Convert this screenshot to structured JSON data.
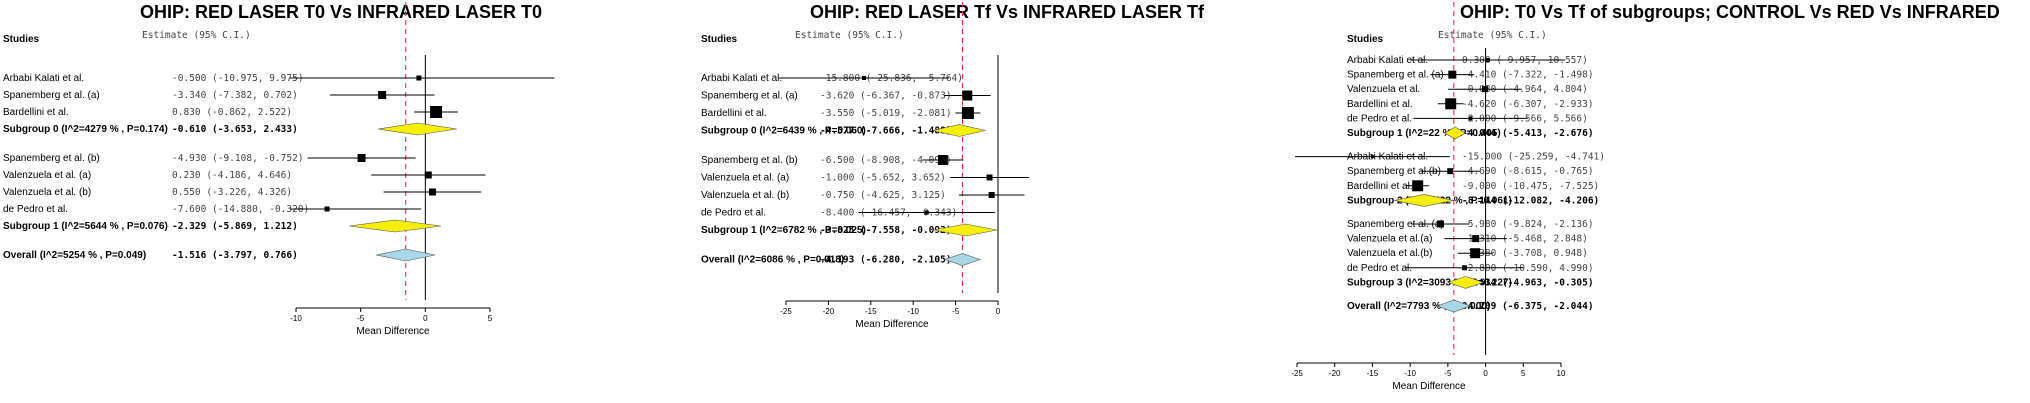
{
  "header": {
    "studies_label": "Studies",
    "estimate_label": "Estimate (95% C.I.)"
  },
  "colors": {
    "summary_subgroup": "#f5ee08",
    "summary_overall": "#a8d8e8",
    "reference_line": "#e8212b",
    "marker": "#000000"
  },
  "chart_data": [
    {
      "type": "forest",
      "title": "OHIP: RED LASER T0 Vs INFRARED LASER T0",
      "xlabel": "Mean Difference",
      "xlim": [
        -10,
        5
      ],
      "xticks": [
        -10,
        -5,
        0,
        5
      ],
      "grid": false,
      "rows": [
        {
          "label": "Arbabi Kalati et al.",
          "est": -0.5,
          "lo": -10.975,
          "hi": 9.975,
          "text": "-0.500 (-10.975, 9.975)",
          "kind": "study",
          "w": 5
        },
        {
          "label": "Spanemberg et al. (a)",
          "est": -3.34,
          "lo": -7.382,
          "hi": 0.702,
          "text": "-3.340 (-7.382, 0.702)",
          "kind": "study",
          "w": 8
        },
        {
          "label": "Bardellini et al.",
          "est": 0.83,
          "lo": -0.862,
          "hi": 2.522,
          "text": "0.830 (-0.862, 2.522)",
          "kind": "study",
          "w": 12
        },
        {
          "label": "Subgroup 0 (I^2=4279 % , P=0.174)",
          "est": -0.61,
          "lo": -3.653,
          "hi": 2.433,
          "text": "-0.610 (-3.653, 2.433)",
          "kind": "subgroup"
        },
        {
          "kind": "gap"
        },
        {
          "label": "Spanemberg et al. (b)",
          "est": -4.93,
          "lo": -9.108,
          "hi": -0.752,
          "text": "-4.930 (-9.108, -0.752)",
          "kind": "study",
          "w": 8
        },
        {
          "label": "Valenzuela et al. (a)",
          "est": 0.23,
          "lo": -4.186,
          "hi": 4.646,
          "text": "0.230 (-4.186, 4.646)",
          "kind": "study",
          "w": 7
        },
        {
          "label": "Valenzuela et al. (b)",
          "est": 0.55,
          "lo": -3.226,
          "hi": 4.326,
          "text": "0.550 (-3.226, 4.326)",
          "kind": "study",
          "w": 7
        },
        {
          "label": "de Pedro et al.",
          "est": -7.6,
          "lo": -14.88,
          "hi": -0.32,
          "text": "-7.600 (-14.880, -0.320)",
          "kind": "study",
          "w": 5
        },
        {
          "label": "Subgroup 1 (I^2=5644 % , P=0.076)",
          "est": -2.329,
          "lo": -5.869,
          "hi": 1.212,
          "text": "-2.329 (-5.869, 1.212)",
          "kind": "subgroup"
        },
        {
          "kind": "gap"
        },
        {
          "label": "Overall (I^2=5254 % , P=0.049)",
          "est": -1.516,
          "lo": -3.797,
          "hi": 0.766,
          "text": "-1.516 (-3.797, 0.766)",
          "kind": "overall"
        }
      ],
      "reference_line": -1.516
    },
    {
      "type": "forest",
      "title": "OHIP: RED LASER Tf Vs INFRARED LASER Tf",
      "xlabel": "Mean Difference",
      "xlim": [
        -25,
        0
      ],
      "xticks": [
        -25,
        -20,
        -15,
        -10,
        -5,
        0
      ],
      "grid": false,
      "rows": [
        {
          "label": "Arbabi Kalati et al.",
          "est": -15.8,
          "lo": -25.836,
          "hi": -5.764,
          "text": "-15.800 (-25.836, -5.764)",
          "kind": "study",
          "w": 4
        },
        {
          "label": "Spanemberg et al. (a)",
          "est": -3.62,
          "lo": -6.367,
          "hi": -0.873,
          "text": "-3.620 (-6.367, -0.873)",
          "kind": "study",
          "w": 10
        },
        {
          "label": "Bardellini et al.",
          "est": -3.55,
          "lo": -5.019,
          "hi": -2.081,
          "text": "-3.550 (-5.019, -2.081)",
          "kind": "study",
          "w": 12
        },
        {
          "label": "Subgroup 0 (I^2=6439 % , P=0.060)",
          "est": -4.577,
          "lo": -7.666,
          "hi": -1.488,
          "text": "-4.577 (-7.666, -1.488)",
          "kind": "subgroup"
        },
        {
          "kind": "gap"
        },
        {
          "label": "Spanemberg et al. (b)",
          "est": -6.5,
          "lo": -8.908,
          "hi": -4.092,
          "text": "-6.500 (-8.908, -4.092)",
          "kind": "study",
          "w": 10
        },
        {
          "label": "Valenzuela et al. (a)",
          "est": -1.0,
          "lo": -5.652,
          "hi": 3.652,
          "text": "-1.000 (-5.652, 3.652)",
          "kind": "study",
          "w": 6
        },
        {
          "label": "Valenzuela et al. (b)",
          "est": -0.75,
          "lo": -4.625,
          "hi": 3.125,
          "text": "-0.750 (-4.625, 3.125)",
          "kind": "study",
          "w": 6
        },
        {
          "label": "de Pedro et al.",
          "est": -8.4,
          "lo": -16.457,
          "hi": -0.343,
          "text": "-8.400 (-16.457, -0.343)",
          "kind": "study",
          "w": 4
        },
        {
          "label": "Subgroup 1 (I^2=6782 % , P=0.025)",
          "est": -3.825,
          "lo": -7.558,
          "hi": -0.092,
          "text": "-3.825 (-7.558, -0.092)",
          "kind": "subgroup"
        },
        {
          "kind": "gap"
        },
        {
          "label": "Overall (I^2=6086 % , P=0.018)",
          "est": -4.193,
          "lo": -6.28,
          "hi": -2.105,
          "text": "-4.193 (-6.280, -2.105)",
          "kind": "overall"
        }
      ],
      "reference_line": -4.193
    },
    {
      "type": "forest",
      "title": "OHIP: T0 Vs Tf of subgroups; CONTROL Vs RED Vs INFRARED",
      "xlabel": "Mean Difference",
      "xlim": [
        -25,
        10
      ],
      "xticks": [
        -25,
        -20,
        -15,
        -10,
        -5,
        0,
        5,
        10
      ],
      "grid": false,
      "rows": [
        {
          "label": "Arbabi Kalati et al.",
          "est": 0.3,
          "lo": -9.957,
          "hi": 10.557,
          "text": "0.300 (-9.957, 10.557)",
          "kind": "study",
          "w": 4
        },
        {
          "label": "Spanemberg et al. (a)",
          "est": -4.41,
          "lo": -7.322,
          "hi": -1.498,
          "text": "-4.410 (-7.322, -1.498)",
          "kind": "study",
          "w": 8
        },
        {
          "label": "Valenzuela et al.",
          "est": -0.08,
          "lo": -4.964,
          "hi": 4.804,
          "text": "-0.080 (-4.964, 4.804)",
          "kind": "study",
          "w": 6
        },
        {
          "label": "Bardellini et al.",
          "est": -4.62,
          "lo": -6.307,
          "hi": -2.933,
          "text": "-4.620 (-6.307, -2.933)",
          "kind": "study",
          "w": 11
        },
        {
          "label": "de Pedro et al.",
          "est": -2.0,
          "lo": -9.566,
          "hi": 5.566,
          "text": "-2.000 (-9.566, 5.566)",
          "kind": "study",
          "w": 4
        },
        {
          "label": "Subgroup 1 (I^2=22 % , P=0.405)",
          "est": -4.044,
          "lo": -5.413,
          "hi": -2.676,
          "text": "-4.044 (-5.413, -2.676)",
          "kind": "subgroup"
        },
        {
          "kind": "gap"
        },
        {
          "label": "Arbabi Kalati et al.",
          "est": -15.0,
          "lo": -25.259,
          "hi": -4.741,
          "text": "-15.000 (-25.259, -4.741)",
          "kind": "study",
          "w": 3
        },
        {
          "label": "Spanemberg et al.(b)",
          "est": -4.69,
          "lo": -8.615,
          "hi": -0.765,
          "text": "-4.690 (-8.615, -0.765)",
          "kind": "study",
          "w": 6
        },
        {
          "label": "Bardellini et al.",
          "est": -9.0,
          "lo": -10.475,
          "hi": -7.525,
          "text": "-9.000 (-10.475, -7.525)",
          "kind": "study",
          "w": 11
        },
        {
          "label": "Subgroup 2 (I^2=6422 % , P=0.061)",
          "est": -8.144,
          "lo": -12.082,
          "hi": -4.206,
          "text": "-8.144 (-12.082, -4.206)",
          "kind": "subgroup"
        },
        {
          "kind": "gap"
        },
        {
          "label": "Spanemberg et al. (a)",
          "est": -5.98,
          "lo": -9.824,
          "hi": -2.136,
          "text": "-5.980 (-9.824, -2.136)",
          "kind": "study",
          "w": 7
        },
        {
          "label": "Valenzuela et al.(a)",
          "est": -1.31,
          "lo": -5.468,
          "hi": 2.848,
          "text": "-1.310 (-5.468, 2.848)",
          "kind": "study",
          "w": 7
        },
        {
          "label": "Valenzuela et al.(b)",
          "est": -1.38,
          "lo": -3.708,
          "hi": 0.948,
          "text": "-1.380 (-3.708, 0.948)",
          "kind": "study",
          "w": 10
        },
        {
          "label": "de Pedro et al.",
          "est": -2.8,
          "lo": -10.59,
          "hi": 4.99,
          "text": "-2.800 (-10.590, 4.990)",
          "kind": "study",
          "w": 5
        },
        {
          "label": "Subgroup 3 (I^2=3093 % , P=0.227)",
          "est": -2.634,
          "lo": -4.963,
          "hi": -0.305,
          "text": "-2.634 (-4.963, -0.305)",
          "kind": "subgroup"
        },
        {
          "kind": "gap"
        },
        {
          "label": "Overall (I^2=7793 % , P=0.000)",
          "est": -4.209,
          "lo": -6.375,
          "hi": -2.044,
          "text": "-4.209 (-6.375, -2.044)",
          "kind": "overall"
        }
      ],
      "reference_line": -4.209
    }
  ]
}
